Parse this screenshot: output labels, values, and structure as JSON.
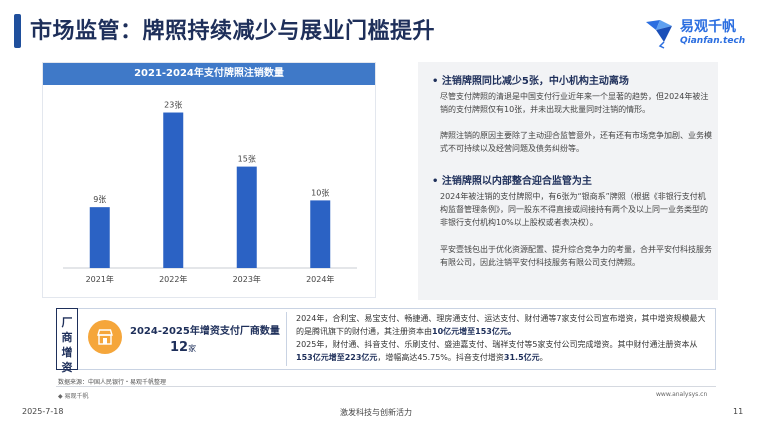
{
  "header": {
    "title": "市场监管：牌照持续减少与展业门槛提升",
    "logo_cn": "易观千帆",
    "logo_en": "Qianfan.tech"
  },
  "chart_data": {
    "type": "bar",
    "title": "2021-2024年支付牌照注销数量",
    "categories": [
      "2021年",
      "2022年",
      "2023年",
      "2024年"
    ],
    "values": [
      9,
      23,
      15,
      10
    ],
    "value_labels": [
      "9张",
      "23张",
      "15张",
      "10张"
    ],
    "ylim": [
      0,
      25
    ],
    "xlabel": "",
    "ylabel": "",
    "bar_color": "#2b62c4",
    "grid": false
  },
  "right_panel": {
    "heading1": "•  注销牌照同比减少5张，中小机构主动离场",
    "para1a": "尽管支付牌照的清退是中国支付行业近年来一个显著的趋势，但2024年被注销的支付牌照仅有10张，并未出现大批量同时注销的情形。",
    "para1b": "牌照注销的原因主要除了主动迎合监管意外，还有还有市场竞争加剧、业务模式不可持续以及经营问题及债务纠纷等。",
    "heading2": "•  注销牌照以内部整合迎合监管为主",
    "para2a": "2024年被注销的支付牌照中，有6张为“银商系”牌照（根据《非银行支付机构监督管理条例》，同一股东不得直接或间接持有两个及以上同一业务类型的非银行支付机构10%以上股权或者表决权）。",
    "para2b": "平安壹钱包出于优化资源配置、提升综合竞争力的考量，合并平安付科技服务有限公司，因此注销平安付科技服务有限公司支付牌照。"
  },
  "bottom": {
    "tab_label": [
      "厂",
      "商",
      "增",
      "资"
    ],
    "title": "2024-2025年增资支付厂商数量",
    "count_value": "12",
    "count_unit": "家",
    "line1": "2024年，合利宝、易宝支付、畅捷通、理房通支付、运达支付、财付通等7家支付公司宣布增资，其中增资规模最大的是腾讯旗下的财付通，其注册资本由",
    "line1_hl": "10亿元增至153亿元。",
    "line2": "2025年，财付通、抖音支付、乐刷支付、盛迪嘉支付、瑞祥支付等5家支付公司完成增资。其中财付通注册资本从",
    "line2_hl": "153亿元增至223亿元",
    "line2b": "，增幅高达45.75%。抖音支付增资",
    "line2_hl2": "31.5亿元",
    "line2c": "。"
  },
  "footer": {
    "source": "数据来源：中国人民银行・易观千帆整理",
    "mini_logo": "易观千帆",
    "website": "www.analysys.cn",
    "date": "2025-7-18",
    "slogan": "激发科技与创新活力",
    "page": "11"
  },
  "colors": {
    "accent": "#1f4f9c",
    "chart_header": "#3f79c8",
    "bar": "#2b62c4",
    "panel_bg": "#f2f3f5",
    "store_icon": "#f5a63b"
  }
}
